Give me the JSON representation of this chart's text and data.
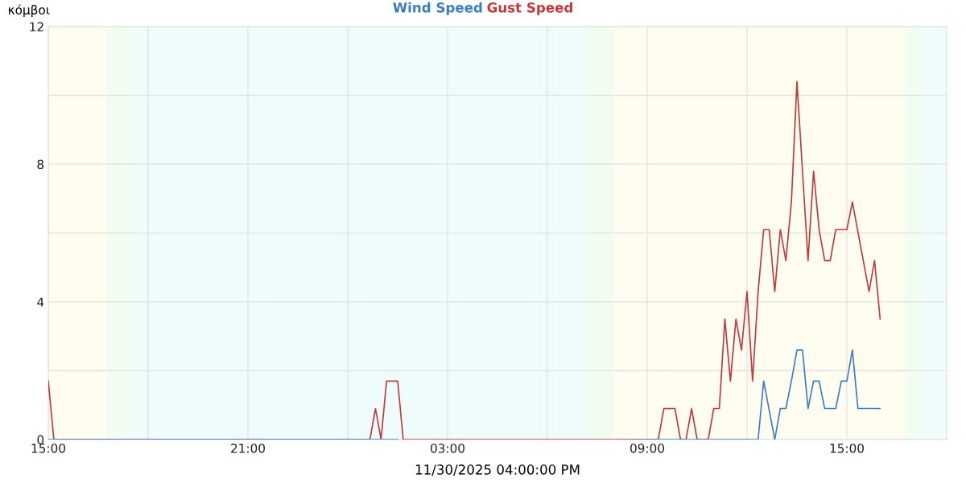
{
  "chart_data": {
    "type": "line",
    "legend": "top",
    "xlabel": "11/30/2025 04:00:00 PM",
    "ylabel": "κόμβοι",
    "xlim": [
      "2025-11-29T15:00",
      "2025-11-30T18:00"
    ],
    "ylim": [
      0,
      12
    ],
    "xticks": [
      {
        "value": "2025-11-29T15:00",
        "label": "15:00"
      },
      {
        "value": "2025-11-29T18:00",
        "label": null
      },
      {
        "value": "2025-11-29T21:00",
        "label": "21:00"
      },
      {
        "value": "2025-11-30T00:00",
        "label": null
      },
      {
        "value": "2025-11-30T03:00",
        "label": "03:00"
      },
      {
        "value": "2025-11-30T06:00",
        "label": null
      },
      {
        "value": "2025-11-30T09:00",
        "label": "09:00"
      },
      {
        "value": "2025-11-30T12:00",
        "label": null
      },
      {
        "value": "2025-11-30T15:00",
        "label": "15:00"
      }
    ],
    "yticks": [
      0,
      {
        "value": 2,
        "label": null
      },
      4,
      {
        "value": 6,
        "label": null
      },
      8,
      {
        "value": 10,
        "label": null
      },
      12
    ],
    "grid": true,
    "marker": "none",
    "line_style": "solid",
    "bands": [
      {
        "axis": "x",
        "from": "2025-11-29T15:00",
        "to": "2025-11-29T16:45",
        "color": "#fefdf0"
      },
      {
        "axis": "x",
        "from": "2025-11-29T16:45",
        "to": "2025-11-29T17:30",
        "color": "#f0fdf0"
      },
      {
        "axis": "x",
        "from": "2025-11-29T17:30",
        "to": "2025-11-30T07:15",
        "color": "#effcfc"
      },
      {
        "axis": "x",
        "from": "2025-11-30T07:15",
        "to": "2025-11-30T08:00",
        "color": "#f0fdf0"
      },
      {
        "axis": "x",
        "from": "2025-11-30T08:00",
        "to": "2025-11-30T16:45",
        "color": "#fefdf0"
      },
      {
        "axis": "x",
        "from": "2025-11-30T16:45",
        "to": "2025-11-30T17:15",
        "color": "#f0fdf0"
      },
      {
        "axis": "x",
        "from": "2025-11-30T17:15",
        "to": "2025-11-30T18:00",
        "color": "#effcfc"
      }
    ],
    "series": [
      {
        "name": "Gust Speed",
        "color": "#c0393b",
        "x": [
          "2025-11-29T15:00",
          "2025-11-29T15:10",
          "2025-11-30T00:40",
          "2025-11-30T00:50",
          "2025-11-30T01:00",
          "2025-11-30T01:10",
          "2025-11-30T01:30",
          "2025-11-30T01:40",
          "2025-11-30T09:20",
          "2025-11-30T09:30",
          "2025-11-30T09:50",
          "2025-11-30T10:00",
          "2025-11-30T10:10",
          "2025-11-30T10:20",
          "2025-11-30T10:30",
          "2025-11-30T10:50",
          "2025-11-30T11:00",
          "2025-11-30T11:10",
          "2025-11-30T11:20",
          "2025-11-30T11:30",
          "2025-11-30T11:40",
          "2025-11-30T11:50",
          "2025-11-30T12:00",
          "2025-11-30T12:10",
          "2025-11-30T12:20",
          "2025-11-30T12:30",
          "2025-11-30T12:40",
          "2025-11-30T12:50",
          "2025-11-30T13:00",
          "2025-11-30T13:10",
          "2025-11-30T13:20",
          "2025-11-30T13:30",
          "2025-11-30T13:50",
          "2025-11-30T14:00",
          "2025-11-30T14:10",
          "2025-11-30T14:20",
          "2025-11-30T14:30",
          "2025-11-30T14:40",
          "2025-11-30T15:00",
          "2025-11-30T15:10",
          "2025-11-30T15:40",
          "2025-11-30T15:50",
          "2025-11-30T16:00"
        ],
        "values": [
          1.7,
          0,
          0,
          0.9,
          0,
          1.7,
          1.7,
          0,
          0,
          0.9,
          0.9,
          0,
          0,
          0.9,
          0,
          0,
          0.9,
          0.9,
          3.5,
          1.7,
          3.5,
          2.6,
          4.3,
          1.7,
          4.3,
          6.1,
          6.1,
          4.3,
          6.1,
          5.2,
          6.9,
          10.4,
          5.2,
          7.8,
          6.1,
          5.2,
          5.2,
          6.1,
          6.1,
          6.9,
          4.3,
          5.2,
          3.5
        ]
      },
      {
        "name": "Wind Speed",
        "color": "#3a7ebf",
        "x": [
          "2025-11-29T15:00",
          "2025-11-30T01:30",
          "2025-11-30T01:40",
          "2025-11-30T08:30",
          "2025-11-30T12:20",
          "2025-11-30T12:30",
          "2025-11-30T12:50",
          "2025-11-30T13:00",
          "2025-11-30T13:10",
          "2025-11-30T13:20",
          "2025-11-30T13:30",
          "2025-11-30T13:40",
          "2025-11-30T13:50",
          "2025-11-30T14:00",
          "2025-11-30T14:10",
          "2025-11-30T14:20",
          "2025-11-30T14:40",
          "2025-11-30T14:50",
          "2025-11-30T15:00",
          "2025-11-30T15:10",
          "2025-11-30T15:20",
          "2025-11-30T16:00"
        ],
        "values": [
          0,
          0,
          null,
          0,
          0,
          1.7,
          0,
          0.9,
          0.9,
          1.7,
          2.6,
          2.6,
          0.9,
          1.7,
          1.7,
          0.9,
          0.9,
          1.7,
          1.7,
          2.6,
          0.9,
          0.9
        ]
      }
    ]
  }
}
